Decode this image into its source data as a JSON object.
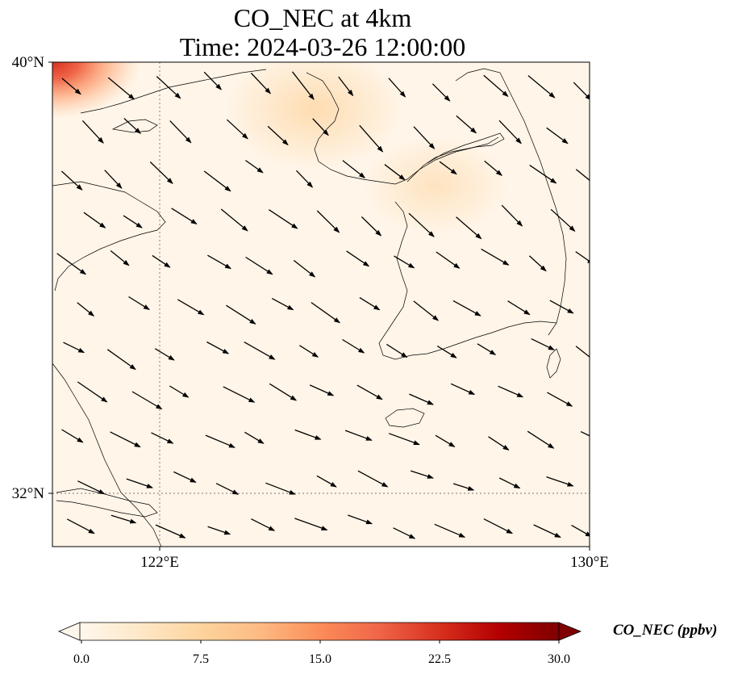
{
  "title": {
    "line1": "CO_NEC at 4km",
    "line2": "Time: 2024-03-26 12:00:00"
  },
  "axes": {
    "lat_ticks": [
      {
        "value": 40,
        "label": "40°N"
      },
      {
        "value": 32,
        "label": "32°N"
      }
    ],
    "lon_ticks": [
      {
        "value": 122,
        "label": "122°E"
      },
      {
        "value": 130,
        "label": "130°E"
      }
    ],
    "extent": {
      "lon_min": 120,
      "lon_max": 130,
      "lat_min": 31,
      "lat_max": 40
    },
    "gridlines": "dotted"
  },
  "colorbar": {
    "label": "CO_NEC (ppbv)",
    "colormap": "OrRd",
    "range": [
      0,
      30
    ],
    "ticks": [
      "0.0",
      "7.5",
      "15.0",
      "22.5",
      "30.0"
    ],
    "extend": "both",
    "colors": [
      "#fff7ec",
      "#fee8c8",
      "#fdd49e",
      "#fdbb84",
      "#fc8d59",
      "#ef6548",
      "#d7301f",
      "#b30000",
      "#7f0000"
    ]
  },
  "wind_field": {
    "description_unit": "wind vectors",
    "prevailing_direction": "northwest"
  }
}
